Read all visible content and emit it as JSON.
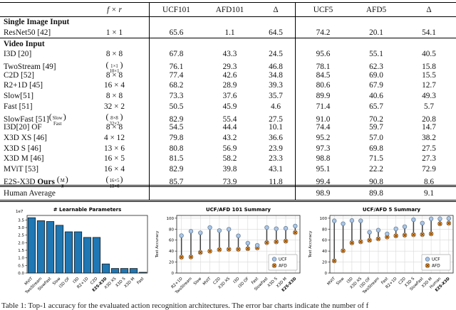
{
  "table": {
    "headers": [
      "",
      "f × r",
      "UCF101",
      "AFD101",
      "Δ",
      "UCF5",
      "AFD5",
      "Δ"
    ],
    "rows": [
      {
        "section": "Single Image Input"
      },
      {
        "name": "ResNet50 [42]",
        "fxr": "1 × 1",
        "vals": [
          "65.6",
          "1.1",
          "64.5",
          "74.2",
          "20.1",
          "54.1"
        ],
        "rule_below": true
      },
      {
        "section": "Video Input"
      },
      {
        "name": "I3D [20]",
        "fxr": "8 × 8",
        "vals": [
          "67.8",
          "43.3",
          "24.5",
          "95.6",
          "55.1",
          "40.5"
        ]
      },
      {
        "name": "TwoStream [49]",
        "fxr_stack": [
          "1×1",
          "10×1"
        ],
        "vals": [
          "76.1",
          "29.3",
          "46.8",
          "78.1",
          "62.3",
          "15.8"
        ]
      },
      {
        "name": "C2D [52]",
        "fxr": "8 × 8",
        "vals": [
          "77.4",
          "42.6",
          "34.8",
          "84.5",
          "69.0",
          "15.5"
        ]
      },
      {
        "name": "R2+1D [45]",
        "fxr": "16 × 4",
        "vals": [
          "68.2",
          "28.9",
          "39.3",
          "80.6",
          "67.9",
          "12.7"
        ]
      },
      {
        "name": "Slow[51]",
        "fxr": "8 × 8",
        "vals": [
          "73.3",
          "37.6",
          "35.7",
          "89.9",
          "40.6",
          "49.3"
        ]
      },
      {
        "name": "Fast [51]",
        "fxr": "32 × 2",
        "vals": [
          "50.5",
          "45.9",
          "4.6",
          "71.4",
          "65.7",
          "5.7"
        ]
      },
      {
        "name": "SlowFast [51]",
        "name_stack": [
          "Slow",
          "Fast"
        ],
        "fxr_stack": [
          "8×8",
          "32×2"
        ],
        "vals": [
          "82.9",
          "55.4",
          "27.5",
          "91.0",
          "70.2",
          "20.8"
        ]
      },
      {
        "name": "I3D[20] OF",
        "fxr": "8 × 8",
        "vals": [
          "54.5",
          "44.4",
          "10.1",
          "74.4",
          "59.7",
          "14.7"
        ]
      },
      {
        "name": "X3D XS [46]",
        "fxr": "4 × 12",
        "vals": [
          "79.8",
          "43.2",
          "36.6",
          "95.2",
          "57.0",
          "38.2"
        ]
      },
      {
        "name": "X3D S [46]",
        "fxr": "13 × 6",
        "vals": [
          "80.8",
          "56.9",
          "23.9",
          "97.3",
          "69.8",
          "27.5"
        ]
      },
      {
        "name": "X3D M [46]",
        "fxr": "16 × 5",
        "vals": [
          "81.5",
          "58.2",
          "23.3",
          "98.8",
          "71.5",
          "27.3"
        ]
      },
      {
        "name": "MViT [53]",
        "fxr": "16 × 4",
        "vals": [
          "82.9",
          "39.8",
          "43.1",
          "95.1",
          "22.2",
          "72.9"
        ]
      },
      {
        "name": "E2S-X3D",
        "name_bold": "Ours",
        "name_stack": [
          "M",
          "S"
        ],
        "fxr_stack": [
          "16×5",
          "13×6"
        ],
        "vals": [
          "85.7",
          "73.9",
          "11.8",
          "99.4",
          "90.8",
          "8.6"
        ]
      },
      {
        "name": "Human Average",
        "human": true,
        "vals": [
          "",
          "",
          "",
          "98.9",
          "89.8",
          "9.1"
        ]
      }
    ]
  },
  "chart_data": [
    {
      "type": "bar",
      "title": "# Learnable Parameters",
      "scale_note": "1e7",
      "categories": [
        "MViT",
        "TwoStream",
        "SlowFast",
        "Slow",
        "I3D OF",
        "I3D",
        "R2+1D",
        "C2D",
        "E2S-X3D",
        "X3D XS",
        "X3D S",
        "X3D M",
        "Fast"
      ],
      "values": [
        3.65,
        3.45,
        3.4,
        3.15,
        2.72,
        2.72,
        2.35,
        2.35,
        0.6,
        0.3,
        0.3,
        0.3,
        0.05
      ],
      "xlabel": "",
      "ylabel": "",
      "ylim": [
        0,
        3.8
      ],
      "yticks": [
        "0.0",
        "0.5",
        "1.0",
        "1.5",
        "2.0",
        "2.5",
        "3.0",
        "3.5"
      ],
      "grid": false,
      "bold_category": "E2S-X3D",
      "bar_color": "#1f77b4",
      "bar_edge": "#1a1a1a"
    },
    {
      "type": "scatter",
      "title": "UCF/AFD 101 Summary",
      "xlabel": "",
      "ylabel": "Test Accuracy",
      "categories": [
        "R2+1D",
        "TwoStream",
        "Slow",
        "MViT",
        "C2D",
        "X3D XS",
        "I3D",
        "I3D OF",
        "Fast",
        "SlowFast",
        "X3D S",
        "X3D M",
        "E2S-X3D"
      ],
      "series": [
        {
          "name": "UCF",
          "values": [
            68.2,
            76.1,
            73.3,
            82.9,
            77.4,
            79.8,
            67.8,
            54.5,
            50.5,
            82.9,
            80.8,
            81.5,
            85.7
          ]
        },
        {
          "name": "AFD",
          "values": [
            28.9,
            29.3,
            37.6,
            39.8,
            42.6,
            43.2,
            43.3,
            44.4,
            45.9,
            55.4,
            56.9,
            58.2,
            73.9
          ]
        }
      ],
      "ylim": [
        0,
        105
      ],
      "yticks": [
        "0",
        "20",
        "40",
        "60",
        "80",
        "100"
      ],
      "grid": true,
      "legend": [
        "UCF",
        "AFD"
      ],
      "legend_position": "lower right",
      "bold_category": "E2S-X3D",
      "ucf_color": "#a9c6e8",
      "afd_color": "#f59d3d",
      "line_color": "#3f3f3f"
    },
    {
      "type": "scatter",
      "title": "UCF/AFD 5 Summary",
      "xlabel": "",
      "ylabel": "Test Accuracy",
      "categories": [
        "MViT",
        "Slow",
        "I3D",
        "X3D XS",
        "I3D OF",
        "TwoStream",
        "Fast",
        "R2+1D",
        "C2D",
        "X3D S",
        "SlowFast",
        "X3D M",
        "Human",
        "E2S-X3D"
      ],
      "series": [
        {
          "name": "UCF",
          "values": [
            95.1,
            89.9,
            95.6,
            95.2,
            74.4,
            78.1,
            71.4,
            80.6,
            84.5,
            97.3,
            91.0,
            98.8,
            98.9,
            99.4
          ]
        },
        {
          "name": "AFD",
          "values": [
            22.2,
            40.6,
            55.1,
            57.0,
            59.7,
            62.3,
            65.7,
            67.9,
            69.0,
            69.8,
            70.2,
            71.5,
            89.8,
            90.8
          ]
        }
      ],
      "ylim": [
        0,
        105
      ],
      "yticks": [
        "0",
        "20",
        "40",
        "60",
        "80",
        "100"
      ],
      "grid": true,
      "legend": [
        "UCF",
        "AFD"
      ],
      "legend_position": "lower right",
      "bold_category": "E2S-X3D",
      "ucf_color": "#a9c6e8",
      "afd_color": "#f59d3d",
      "line_color": "#3f3f3f"
    }
  ],
  "caption": "Table 1: Top-1 accuracy for the evaluated action recognition architectures. The error bar charts indicate the number of f"
}
